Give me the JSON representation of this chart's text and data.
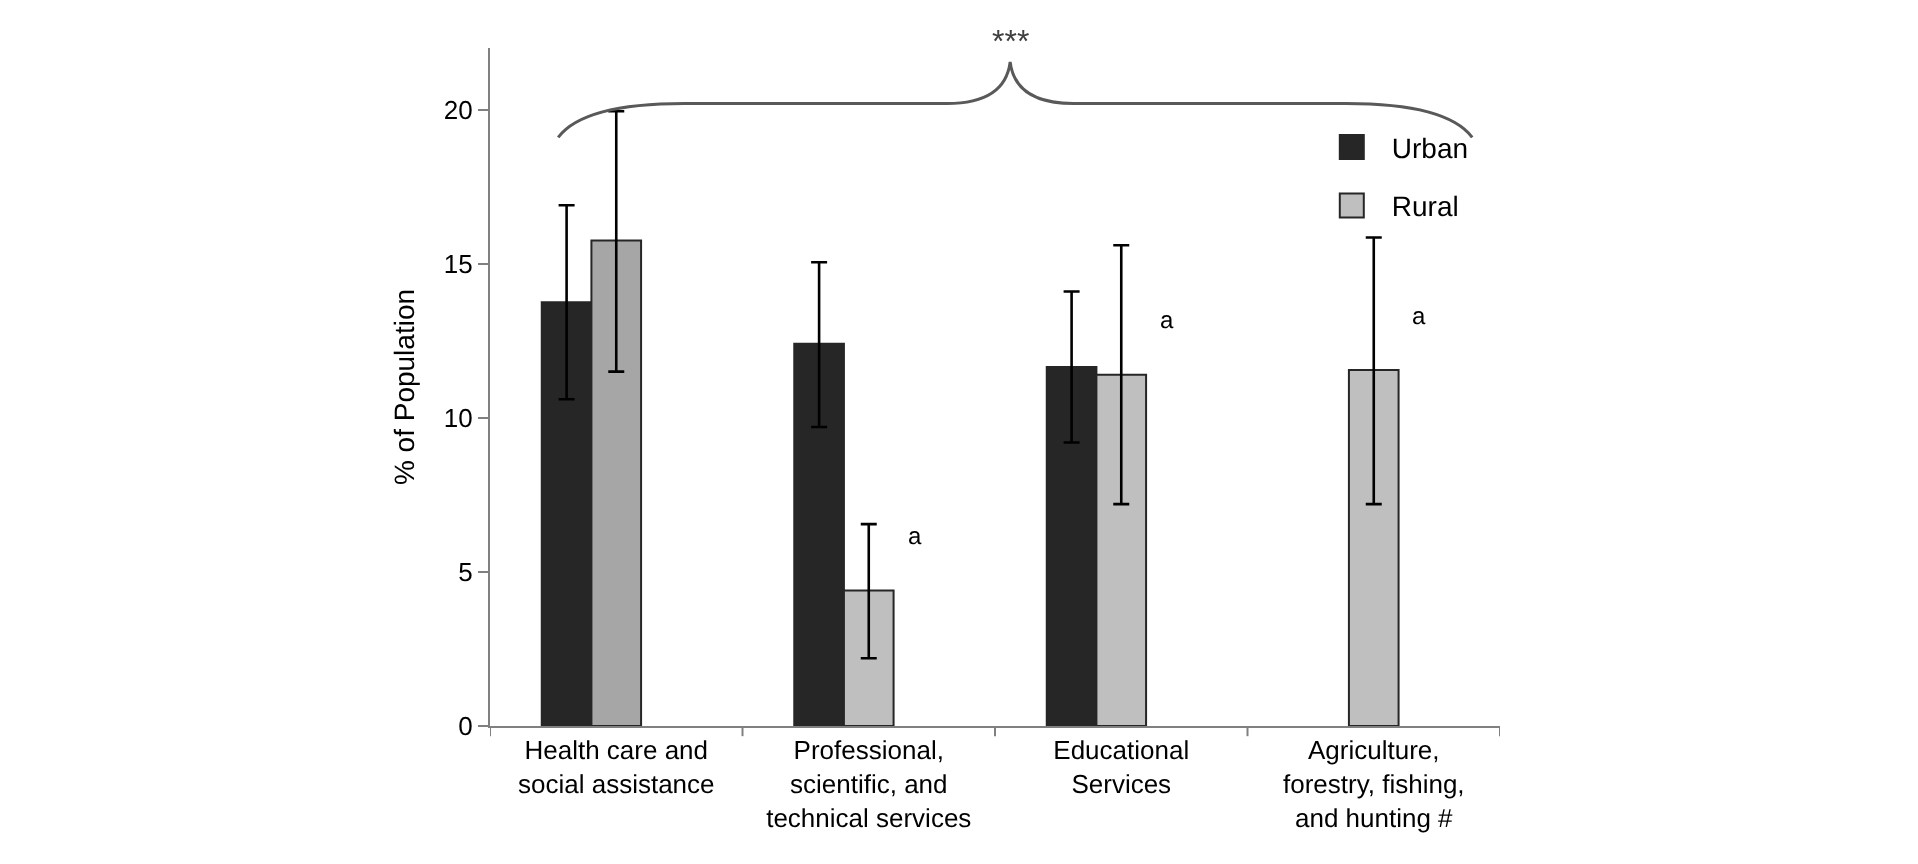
{
  "chart_data": {
    "type": "bar",
    "ylabel": "% of Population",
    "categories": [
      "Health care and social assistance",
      "Professional, scientific, and technical services",
      "Educational Services",
      "Agriculture, forestry, fishing, and hunting #"
    ],
    "series": [
      {
        "name": "Urban",
        "color": "#262626",
        "values": [
          13.75,
          12.4,
          11.65,
          null
        ],
        "errors": [
          [
            10.6,
            16.9
          ],
          [
            9.7,
            15.05
          ],
          [
            9.2,
            14.1
          ],
          null
        ]
      },
      {
        "name": "Rural",
        "color": "#bfbfbf",
        "colors": [
          "#a6a6a6",
          "#bfbfbf",
          "#bfbfbf",
          "#bfbfbf"
        ],
        "values": [
          15.75,
          4.4,
          11.4,
          11.55
        ],
        "errors": [
          [
            11.5,
            19.95
          ],
          [
            2.2,
            6.55
          ],
          [
            7.2,
            15.6
          ],
          [
            7.2,
            15.85
          ]
        ]
      }
    ],
    "ylim": [
      0,
      22
    ],
    "yticks": [
      0,
      5,
      10,
      15,
      20
    ],
    "grid": false,
    "legend": "top right",
    "annotations": [
      "***",
      {
        "text": "a",
        "x": "Professional, scientific, and technical services",
        "y": 4.4
      },
      {
        "text": "a",
        "x": "Educational Services",
        "y": 11.4
      },
      {
        "text": "a",
        "x": "Agriculture, forestry, fishing, and hunting #",
        "y": 11.55
      }
    ]
  }
}
